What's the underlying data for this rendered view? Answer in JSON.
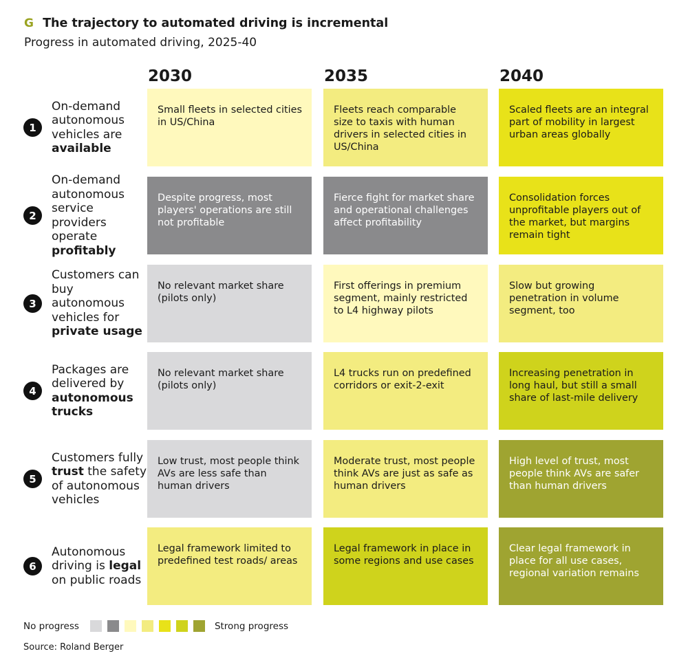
{
  "header": {
    "letter": "G",
    "title": "The trajectory to automated driving is incremental",
    "subtitle": "Progress in automated driving, 2025-40"
  },
  "colors": {
    "letter": "#9aa321",
    "levels": [
      "#d9d9db",
      "#8a8a8c",
      "#fff9bd",
      "#f3ec80",
      "#e8e219",
      "#cfd31c",
      "#9fa431"
    ],
    "text_dark": "#1a1a1a",
    "text_light": "#ffffff"
  },
  "chart_data": {
    "type": "table",
    "columns": [
      "2030",
      "2035",
      "2040"
    ],
    "rows": [
      {
        "number": "1",
        "label_plain": "On-demand autonomous vehicles are",
        "label_bold": "available",
        "cells": [
          {
            "text": "Small fleets in selected cities in US/China",
            "level": 2
          },
          {
            "text": "Fleets reach comparable size to taxis with human drivers in selected cities in US/China",
            "level": 3
          },
          {
            "text": "Scaled fleets are an integral part of mobility in largest urban areas globally",
            "level": 4
          }
        ]
      },
      {
        "number": "2",
        "label_plain": "On-demand autonomous service providers operate",
        "label_bold": "profitably",
        "cells": [
          {
            "text": "Despite progress, most players' operations are still not profitable",
            "level": 1
          },
          {
            "text": "Fierce fight for market share and operational challenges affect profitability",
            "level": 1
          },
          {
            "text": "Consolidation forces unprofitable players out of the market, but margins remain tight",
            "level": 4
          }
        ]
      },
      {
        "number": "3",
        "label_plain": "Customers can buy autonomous vehicles for",
        "label_bold": "private usage",
        "cells": [
          {
            "text": "No relevant market share (pilots only)",
            "level": 0
          },
          {
            "text": "First offerings in premium segment, mainly restricted to L4 highway pilots",
            "level": 2
          },
          {
            "text": "Slow but growing penetration in volume segment, too",
            "level": 3
          }
        ]
      },
      {
        "number": "4",
        "label_plain": "Packages are delivered by",
        "label_bold": "autonomous trucks",
        "cells": [
          {
            "text": "No relevant market share (pilots only)",
            "level": 0
          },
          {
            "text": "L4 trucks run on predefined corridors or exit-2-exit",
            "level": 3
          },
          {
            "text": "Increasing penetration in long haul, but still a small share of last-mile delivery",
            "level": 5
          }
        ]
      },
      {
        "number": "5",
        "label_pre": "Customers fully",
        "label_bold": "trust",
        "label_post": "the safety of autonomous vehicles",
        "cells": [
          {
            "text": "Low trust, most people think AVs are less safe than human drivers",
            "level": 0
          },
          {
            "text": "Moderate trust, most people think AVs are just as safe as human drivers",
            "level": 3
          },
          {
            "text": "High level of trust, most people think AVs are safer than human drivers",
            "level": 6
          }
        ]
      },
      {
        "number": "6",
        "label_pre": "Autonomous driving is",
        "label_bold": "legal",
        "label_post": "on public roads",
        "cells": [
          {
            "text": "Legal framework limited to predefined test roads/ areas",
            "level": 3
          },
          {
            "text": "Legal framework in place in some regions and use cases",
            "level": 5
          },
          {
            "text": "Clear legal framework in place for all use cases, regional variation remains",
            "level": 6
          }
        ]
      }
    ]
  },
  "legend": {
    "low_label": "No progress",
    "high_label": "Strong progress"
  },
  "source": "Source: Roland Berger"
}
